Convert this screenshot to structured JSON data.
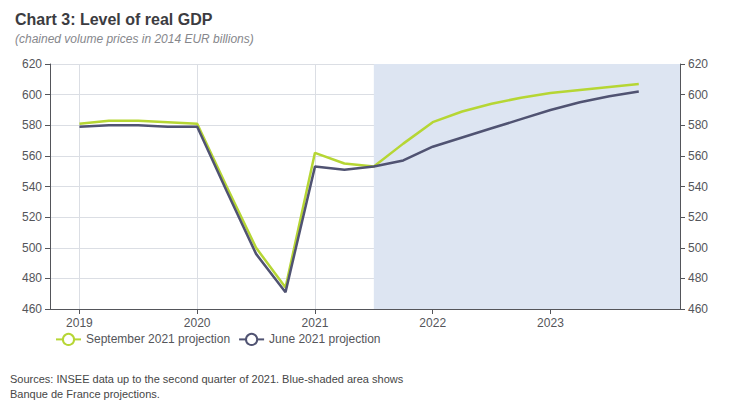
{
  "chart_data": {
    "type": "line",
    "title": "Chart 3: Level of real GDP",
    "subtitle": "(chained volume prices in 2014 EUR billions)",
    "source": "Sources: INSEE data up to the second quarter of 2021. Blue-shaded area shows\nBanque de France projections.",
    "x": [
      2019.0,
      2019.25,
      2019.5,
      2019.75,
      2020.0,
      2020.25,
      2020.5,
      2020.75,
      2021.0,
      2021.25,
      2021.5,
      2021.75,
      2022.0,
      2022.25,
      2022.5,
      2022.75,
      2023.0,
      2023.25,
      2023.5,
      2023.75
    ],
    "series": [
      {
        "name": "September 2021 projection",
        "values": [
          581,
          583,
          583,
          582,
          581,
          540,
          500,
          474,
          562,
          555,
          553,
          568,
          582,
          589,
          594,
          598,
          601,
          603,
          605,
          607
        ]
      },
      {
        "name": "June 2021 projection",
        "values": [
          579,
          580,
          580,
          579,
          579,
          537,
          496,
          471,
          553,
          551,
          553,
          557,
          566,
          572,
          578,
          584,
          590,
          595,
          599,
          602
        ]
      }
    ],
    "xlim": [
      2018.75,
      2024.1
    ],
    "xticks": [
      2019,
      2020,
      2021,
      2022,
      2023
    ],
    "ylim": [
      460,
      620
    ],
    "yticks": [
      460,
      480,
      500,
      520,
      540,
      560,
      580,
      600,
      620
    ],
    "y2lim": [
      460,
      620
    ],
    "y2ticks": [
      460,
      480,
      500,
      520,
      540,
      560,
      580,
      600,
      620
    ],
    "shaded_region": {
      "x": [
        2021.5,
        2024.2
      ],
      "color": "#dde5f2"
    },
    "grid": true,
    "legend": "lower left"
  }
}
